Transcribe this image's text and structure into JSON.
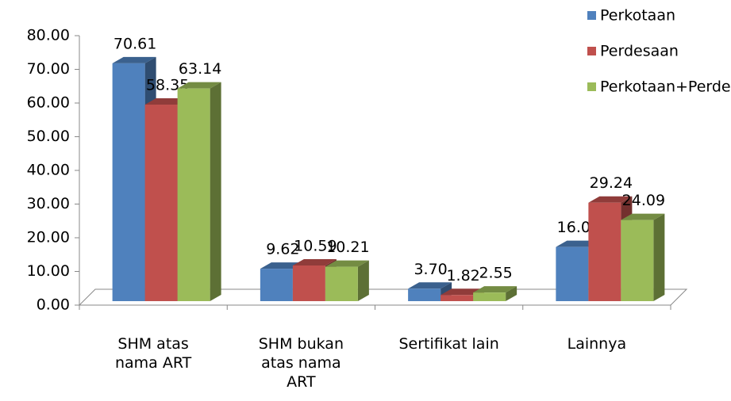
{
  "chart_data": {
    "type": "bar3d",
    "categories": [
      "SHM atas nama ART",
      "SHM bukan atas nama ART",
      "Sertifikat lain",
      "Lainnya"
    ],
    "series": [
      {
        "name": "Perkotaan",
        "color": "#4f81bd",
        "values": [
          70.61,
          9.62,
          3.7,
          16.08
        ],
        "value_labels": [
          "70.61",
          "9.62",
          "3.70",
          "16.08"
        ]
      },
      {
        "name": "Perdesaan",
        "color": "#c0504d",
        "values": [
          58.35,
          10.59,
          1.82,
          29.24
        ],
        "value_labels": [
          "58.35",
          "10.59",
          "1.82",
          "29.24"
        ]
      },
      {
        "name": "Perkotaan+Perdesaan",
        "color": "#9bbb59",
        "values": [
          63.14,
          10.21,
          2.55,
          24.09
        ],
        "value_labels": [
          "63.14",
          "10.21",
          "2.55",
          "24.09"
        ]
      }
    ],
    "ylim": [
      0,
      80
    ],
    "yticks": [
      {
        "value": 0,
        "label": "0.00"
      },
      {
        "value": 10,
        "label": "10.00"
      },
      {
        "value": 20,
        "label": "20.00"
      },
      {
        "value": 30,
        "label": "30.00"
      },
      {
        "value": 40,
        "label": "40.00"
      },
      {
        "value": 50,
        "label": "50.00"
      },
      {
        "value": 60,
        "label": "60.00"
      },
      {
        "value": 70,
        "label": "70.00"
      },
      {
        "value": 80,
        "label": "80.00"
      }
    ],
    "legend": "top-right"
  }
}
